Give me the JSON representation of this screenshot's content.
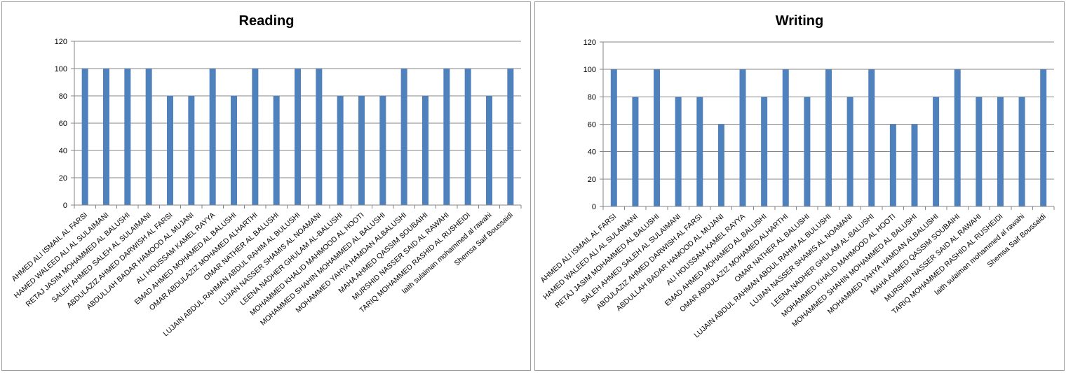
{
  "chart_data": [
    {
      "type": "bar",
      "title": "Reading",
      "xlabel": "",
      "ylabel": "",
      "ylim": [
        0,
        120
      ],
      "yticks": [
        0,
        20,
        40,
        60,
        80,
        100,
        120
      ],
      "grid": true,
      "legend": "none",
      "bar_color": "#4f81bd",
      "categories": [
        "AHMED ALI ISMAIL AL FARSI",
        "HAMED WALEED ALI AL SULAIMANI",
        "RETAJ JASIM MOHAMMED AL BALUSHI",
        "SALEH AHMED SALEH AL SULAIMANI",
        "ABDULAZIZ AHMED DARWISH AL FARSI",
        "ABDULLAH BADAR HAMOOD AL MUJANI",
        "ALI HOUSSAM KAMEL RAYYA",
        "EMAD AHMED MOHAMED AL BALUSHI",
        "OMAR ABDULAZIZ MOHAMED ALHARTHI",
        "OMAR NATHER AL BALUSHI",
        "LUJAIN ABDUL RAHMAN ABDUL RAHIM AL BULUSHI",
        "LUJIAN NASSER SHAMIS AL NOAMANI",
        "LEENA NADHER GHULAM AL-BALUSHI",
        "MOHAMMED KHALID MAHMOOD AL HOOTI",
        "MOHAMMED SHAHIN MOHAMMED AL BALUSHI",
        "MOHAMMED YAHYA HAMDAN ALBALUSHI",
        "MAHA AHMED QASSIM SOUBAIHI",
        "MURSHID NASSER SAID AL RAWAHI",
        "TARIQ MOHAMMED RASHID AL RUSHEIDI",
        "laith sulaiman mohammed al rawahi",
        "Shemsa Saif Boussaidi"
      ],
      "values": [
        100,
        100,
        100,
        100,
        80,
        80,
        100,
        80,
        100,
        80,
        100,
        100,
        80,
        80,
        80,
        100,
        80,
        100,
        100,
        80,
        100
      ]
    },
    {
      "type": "bar",
      "title": "Writing",
      "xlabel": "",
      "ylabel": "",
      "ylim": [
        0,
        120
      ],
      "yticks": [
        0,
        20,
        40,
        60,
        80,
        100,
        120
      ],
      "grid": true,
      "legend": "none",
      "bar_color": "#4f81bd",
      "categories": [
        "AHMED ALI ISMAIL AL FARSI",
        "HAMED WALEED ALI AL SULAIMANI",
        "RETAJ JASIM MOHAMMED AL BALUSHI",
        "SALEH AHMED SALEH AL SULAIMANI",
        "ABDULAZIZ AHMED DARWISH AL FARSI",
        "ABDULLAH BADAR HAMOOD AL MUJANI",
        "ALI HOUSSAM KAMEL RAYYA",
        "EMAD AHMED MOHAMED AL BALUSHI",
        "OMAR ABDULAZIZ MOHAMED ALHARTHI",
        "OMAR NATHER AL BALUSHI",
        "LUJAIN ABDUL RAHMAN ABDUL RAHIM AL BULUSHI",
        "LUJIAN NASSER SHAMIS AL NOAMANI",
        "LEENA NADHER GHULAM AL-BALUSHI",
        "MOHAMMED KHALID MAHMOOD AL HOOTI",
        "MOHAMMED SHAHIN MOHAMMED AL BALUSHI",
        "MOHAMMED YAHYA HAMDAN ALBALUSHI",
        "MAHA AHMED QASSIM SOUBAIHI",
        "MURSHID NASSER SAID AL RAWAHI",
        "TARIQ MOHAMMED RASHID AL RUSHEIDI",
        "laith sulaiman mohammed al rawahi",
        "Shemsa Saif Boussaidi"
      ],
      "values": [
        100,
        80,
        100,
        80,
        80,
        60,
        100,
        80,
        100,
        80,
        100,
        80,
        100,
        60,
        60,
        80,
        100,
        80,
        80,
        80,
        100
      ]
    }
  ]
}
